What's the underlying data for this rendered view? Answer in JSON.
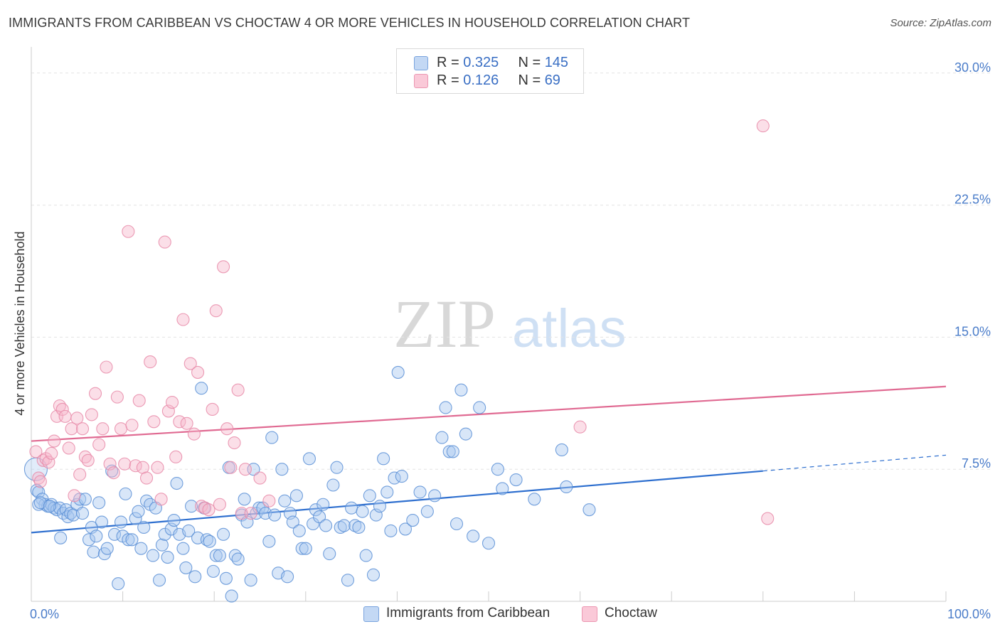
{
  "header": {
    "title": "IMMIGRANTS FROM CARIBBEAN VS CHOCTAW 4 OR MORE VEHICLES IN HOUSEHOLD CORRELATION CHART",
    "source": "Source: ZipAtlas.com"
  },
  "legend": {
    "rows": [
      {
        "r_label": "R = ",
        "r_value": "0.325",
        "n_label": "N = ",
        "n_value": "145"
      },
      {
        "r_label": "R = ",
        "r_value": "0.126",
        "n_label": "N = ",
        "n_value": "69"
      }
    ]
  },
  "watermark": {
    "zip": "ZIP",
    "atlas": "atlas"
  },
  "colors": {
    "blue_fill": "#a8c8f0",
    "blue_stroke": "#5b8fd6",
    "blue_line": "#2e6fcf",
    "pink_fill": "#f7b8cc",
    "pink_stroke": "#e88aa8",
    "pink_line": "#e06a92",
    "tick_label": "#4a7cc9"
  },
  "chart_data": {
    "type": "scatter",
    "ylabel": "4 or more Vehicles in Household",
    "xlabel": "",
    "xlim": [
      0,
      100
    ],
    "ylim": [
      0,
      31
    ],
    "x_tick_labels": [
      "0.0%",
      "100.0%"
    ],
    "y_ticks": [
      7.5,
      15.0,
      22.5,
      30.0
    ],
    "y_tick_labels": [
      "7.5%",
      "15.0%",
      "22.5%",
      "30.0%"
    ],
    "grid": true,
    "legend_position": "top-center",
    "series": [
      {
        "name": "Immigrants from Caribbean",
        "color": "#5b8fd6",
        "trend": {
          "x0": 0,
          "y0": 3.9,
          "x1": 80,
          "y1": 7.4,
          "dashed_to_x": 100,
          "dashed_to_y": 8.3
        },
        "points": [
          [
            0.5,
            7.5
          ],
          [
            0.6,
            6.3
          ],
          [
            0.8,
            6.2
          ],
          [
            1.2,
            5.8
          ],
          [
            1.5,
            5.5
          ],
          [
            1.8,
            5.4
          ],
          [
            2.2,
            5.5
          ],
          [
            2.5,
            5.3
          ],
          [
            2.8,
            5.2
          ],
          [
            3.1,
            5.3
          ],
          [
            3.2,
            3.6
          ],
          [
            3.5,
            5.0
          ],
          [
            3.8,
            5.2
          ],
          [
            4.0,
            4.8
          ],
          [
            4.3,
            5.0
          ],
          [
            4.6,
            4.9
          ],
          [
            5.0,
            5.5
          ],
          [
            5.3,
            5.8
          ],
          [
            5.6,
            5.0
          ],
          [
            5.9,
            5.8
          ],
          [
            6.3,
            3.5
          ],
          [
            6.6,
            4.2
          ],
          [
            6.8,
            2.8
          ],
          [
            7.1,
            3.7
          ],
          [
            7.4,
            5.6
          ],
          [
            7.7,
            4.5
          ],
          [
            8.0,
            2.7
          ],
          [
            8.3,
            3.0
          ],
          [
            8.8,
            7.4
          ],
          [
            9.1,
            3.8
          ],
          [
            9.5,
            1.0
          ],
          [
            9.8,
            4.5
          ],
          [
            10.0,
            3.7
          ],
          [
            10.3,
            6.1
          ],
          [
            10.6,
            3.5
          ],
          [
            11.0,
            3.5
          ],
          [
            11.4,
            4.7
          ],
          [
            11.7,
            5.1
          ],
          [
            12.0,
            3.0
          ],
          [
            12.3,
            4.2
          ],
          [
            12.6,
            5.7
          ],
          [
            13.0,
            5.5
          ],
          [
            13.3,
            2.6
          ],
          [
            13.6,
            5.3
          ],
          [
            14.0,
            1.2
          ],
          [
            14.3,
            3.2
          ],
          [
            14.6,
            3.8
          ],
          [
            14.9,
            2.5
          ],
          [
            15.3,
            4.1
          ],
          [
            15.6,
            4.6
          ],
          [
            15.9,
            6.7
          ],
          [
            16.2,
            3.8
          ],
          [
            16.6,
            3.0
          ],
          [
            16.9,
            1.9
          ],
          [
            17.2,
            4.0
          ],
          [
            17.5,
            5.4
          ],
          [
            17.9,
            1.4
          ],
          [
            18.2,
            3.6
          ],
          [
            18.6,
            12.1
          ],
          [
            18.9,
            5.3
          ],
          [
            19.2,
            3.5
          ],
          [
            19.5,
            3.4
          ],
          [
            19.9,
            1.7
          ],
          [
            20.2,
            2.6
          ],
          [
            20.6,
            2.6
          ],
          [
            21.0,
            3.8
          ],
          [
            21.3,
            1.3
          ],
          [
            21.6,
            7.6
          ],
          [
            21.9,
            0.3
          ],
          [
            22.3,
            2.6
          ],
          [
            22.6,
            2.4
          ],
          [
            23.0,
            4.9
          ],
          [
            23.3,
            5.8
          ],
          [
            23.6,
            4.5
          ],
          [
            24.0,
            1.2
          ],
          [
            24.3,
            7.5
          ],
          [
            24.6,
            5.0
          ],
          [
            24.9,
            5.3
          ],
          [
            25.3,
            5.3
          ],
          [
            25.6,
            5.0
          ],
          [
            26.0,
            3.4
          ],
          [
            26.3,
            9.3
          ],
          [
            26.6,
            4.9
          ],
          [
            27.0,
            1.6
          ],
          [
            27.4,
            7.5
          ],
          [
            27.7,
            5.7
          ],
          [
            28.0,
            1.4
          ],
          [
            28.3,
            5.0
          ],
          [
            28.6,
            4.5
          ],
          [
            29.0,
            6.0
          ],
          [
            29.3,
            4.0
          ],
          [
            29.6,
            3.0
          ],
          [
            30.0,
            3.0
          ],
          [
            30.4,
            8.1
          ],
          [
            30.8,
            4.4
          ],
          [
            31.1,
            5.2
          ],
          [
            31.5,
            4.8
          ],
          [
            31.9,
            5.5
          ],
          [
            32.2,
            4.3
          ],
          [
            32.6,
            2.7
          ],
          [
            33.0,
            6.6
          ],
          [
            33.4,
            7.6
          ],
          [
            33.8,
            4.2
          ],
          [
            34.2,
            4.3
          ],
          [
            34.6,
            1.2
          ],
          [
            35.0,
            5.3
          ],
          [
            35.4,
            4.3
          ],
          [
            35.8,
            4.2
          ],
          [
            36.2,
            5.1
          ],
          [
            36.6,
            2.6
          ],
          [
            37.0,
            6.0
          ],
          [
            37.4,
            1.5
          ],
          [
            37.7,
            4.9
          ],
          [
            38.1,
            5.4
          ],
          [
            38.5,
            8.1
          ],
          [
            38.9,
            6.2
          ],
          [
            39.3,
            4.0
          ],
          [
            39.7,
            7.0
          ],
          [
            40.1,
            13.0
          ],
          [
            40.5,
            7.1
          ],
          [
            40.9,
            4.1
          ],
          [
            41.7,
            4.6
          ],
          [
            42.5,
            6.2
          ],
          [
            43.3,
            5.1
          ],
          [
            44.1,
            6.0
          ],
          [
            44.9,
            9.3
          ],
          [
            45.3,
            11.0
          ],
          [
            45.7,
            8.5
          ],
          [
            46.1,
            8.5
          ],
          [
            46.5,
            4.4
          ],
          [
            47.0,
            12.0
          ],
          [
            47.5,
            9.5
          ],
          [
            48.3,
            3.7
          ],
          [
            49.0,
            11.0
          ],
          [
            50.0,
            3.3
          ],
          [
            51.0,
            7.5
          ],
          [
            51.5,
            6.4
          ],
          [
            53.0,
            6.9
          ],
          [
            55.0,
            5.8
          ],
          [
            58.0,
            8.6
          ],
          [
            58.5,
            6.5
          ],
          [
            61.0,
            5.2
          ],
          [
            0.8,
            5.5
          ],
          [
            1.0,
            5.6
          ],
          [
            2.0,
            5.4
          ]
        ]
      },
      {
        "name": "Choctaw",
        "color": "#e88aa8",
        "trend": {
          "x0": 0,
          "y0": 9.1,
          "x1": 100,
          "y1": 12.2
        },
        "points": [
          [
            0.5,
            8.5
          ],
          [
            0.8,
            7.0
          ],
          [
            1.0,
            6.8
          ],
          [
            1.3,
            8.0
          ],
          [
            1.6,
            8.1
          ],
          [
            1.9,
            7.9
          ],
          [
            2.2,
            8.4
          ],
          [
            2.5,
            9.1
          ],
          [
            2.8,
            10.5
          ],
          [
            3.1,
            11.1
          ],
          [
            3.4,
            10.9
          ],
          [
            3.7,
            10.5
          ],
          [
            4.1,
            8.7
          ],
          [
            4.4,
            9.8
          ],
          [
            4.7,
            6.0
          ],
          [
            5.0,
            10.4
          ],
          [
            5.3,
            7.2
          ],
          [
            5.6,
            9.8
          ],
          [
            5.9,
            8.2
          ],
          [
            6.2,
            8.0
          ],
          [
            6.6,
            10.6
          ],
          [
            7.0,
            11.8
          ],
          [
            7.4,
            8.9
          ],
          [
            7.8,
            9.8
          ],
          [
            8.2,
            13.3
          ],
          [
            8.6,
            7.8
          ],
          [
            9.0,
            7.3
          ],
          [
            9.4,
            11.6
          ],
          [
            9.8,
            9.8
          ],
          [
            10.2,
            7.8
          ],
          [
            10.6,
            21.0
          ],
          [
            11.0,
            10.0
          ],
          [
            11.4,
            7.7
          ],
          [
            11.8,
            11.4
          ],
          [
            12.2,
            7.6
          ],
          [
            12.6,
            7.0
          ],
          [
            13.0,
            13.6
          ],
          [
            13.4,
            10.2
          ],
          [
            13.8,
            7.6
          ],
          [
            14.2,
            5.8
          ],
          [
            14.6,
            20.4
          ],
          [
            15.0,
            10.8
          ],
          [
            15.4,
            11.3
          ],
          [
            15.8,
            8.2
          ],
          [
            16.2,
            10.2
          ],
          [
            16.6,
            16.0
          ],
          [
            17.0,
            10.1
          ],
          [
            17.4,
            13.5
          ],
          [
            17.8,
            9.5
          ],
          [
            18.2,
            13.0
          ],
          [
            18.6,
            5.4
          ],
          [
            19.0,
            5.3
          ],
          [
            19.4,
            5.2
          ],
          [
            19.8,
            10.9
          ],
          [
            20.2,
            16.5
          ],
          [
            20.6,
            5.5
          ],
          [
            21.0,
            19.0
          ],
          [
            21.4,
            9.8
          ],
          [
            21.8,
            7.6
          ],
          [
            22.2,
            9.0
          ],
          [
            22.6,
            12.0
          ],
          [
            23.0,
            5.0
          ],
          [
            23.4,
            7.5
          ],
          [
            24.0,
            5.0
          ],
          [
            25.0,
            7.0
          ],
          [
            26.0,
            5.7
          ],
          [
            60.0,
            9.9
          ],
          [
            80.0,
            27.0
          ],
          [
            80.5,
            4.7
          ]
        ]
      }
    ]
  },
  "bottom_legend": {
    "items": [
      {
        "label": "Immigrants from Caribbean"
      },
      {
        "label": "Choctaw"
      }
    ]
  }
}
